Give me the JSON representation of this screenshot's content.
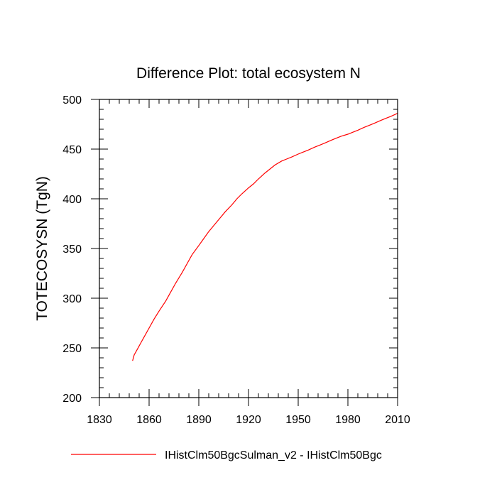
{
  "chart_data": {
    "type": "line",
    "title": "Difference Plot: total ecosystem N",
    "xlabel": "",
    "ylabel": "TOTECOSYSN  (TgN)",
    "xlim": [
      1830,
      2010
    ],
    "ylim": [
      200,
      500
    ],
    "x_ticks": [
      1830,
      1860,
      1890,
      1920,
      1950,
      1980,
      2010
    ],
    "y_ticks": [
      200,
      250,
      300,
      350,
      400,
      450,
      500
    ],
    "grid": false,
    "legend_position": "bottom",
    "series": [
      {
        "name": "IHistClm50BgcSulman_v2 - IHistClm50Bgc",
        "color": "#ff0000",
        "x": [
          1850,
          1851,
          1853,
          1855,
          1857,
          1860,
          1863,
          1866,
          1870,
          1873,
          1876,
          1880,
          1883,
          1886,
          1890,
          1893,
          1896,
          1900,
          1903,
          1906,
          1910,
          1913,
          1916,
          1920,
          1923,
          1926,
          1930,
          1933,
          1936,
          1940,
          1943,
          1946,
          1950,
          1953,
          1956,
          1960,
          1963,
          1966,
          1970,
          1973,
          1976,
          1980,
          1983,
          1986,
          1990,
          1993,
          1996,
          2000,
          2003,
          2006,
          2010
        ],
        "y": [
          237,
          243,
          249,
          255,
          261,
          270,
          279,
          287,
          297,
          306,
          315,
          326,
          335,
          344,
          353,
          360,
          367,
          375,
          381,
          387,
          394,
          400,
          405,
          411,
          415,
          420,
          426,
          430,
          434,
          438,
          440,
          442,
          445,
          447,
          449,
          452,
          454,
          456,
          459,
          461,
          463,
          465,
          467,
          469,
          472,
          474,
          476,
          479,
          481,
          483,
          486
        ]
      }
    ]
  }
}
